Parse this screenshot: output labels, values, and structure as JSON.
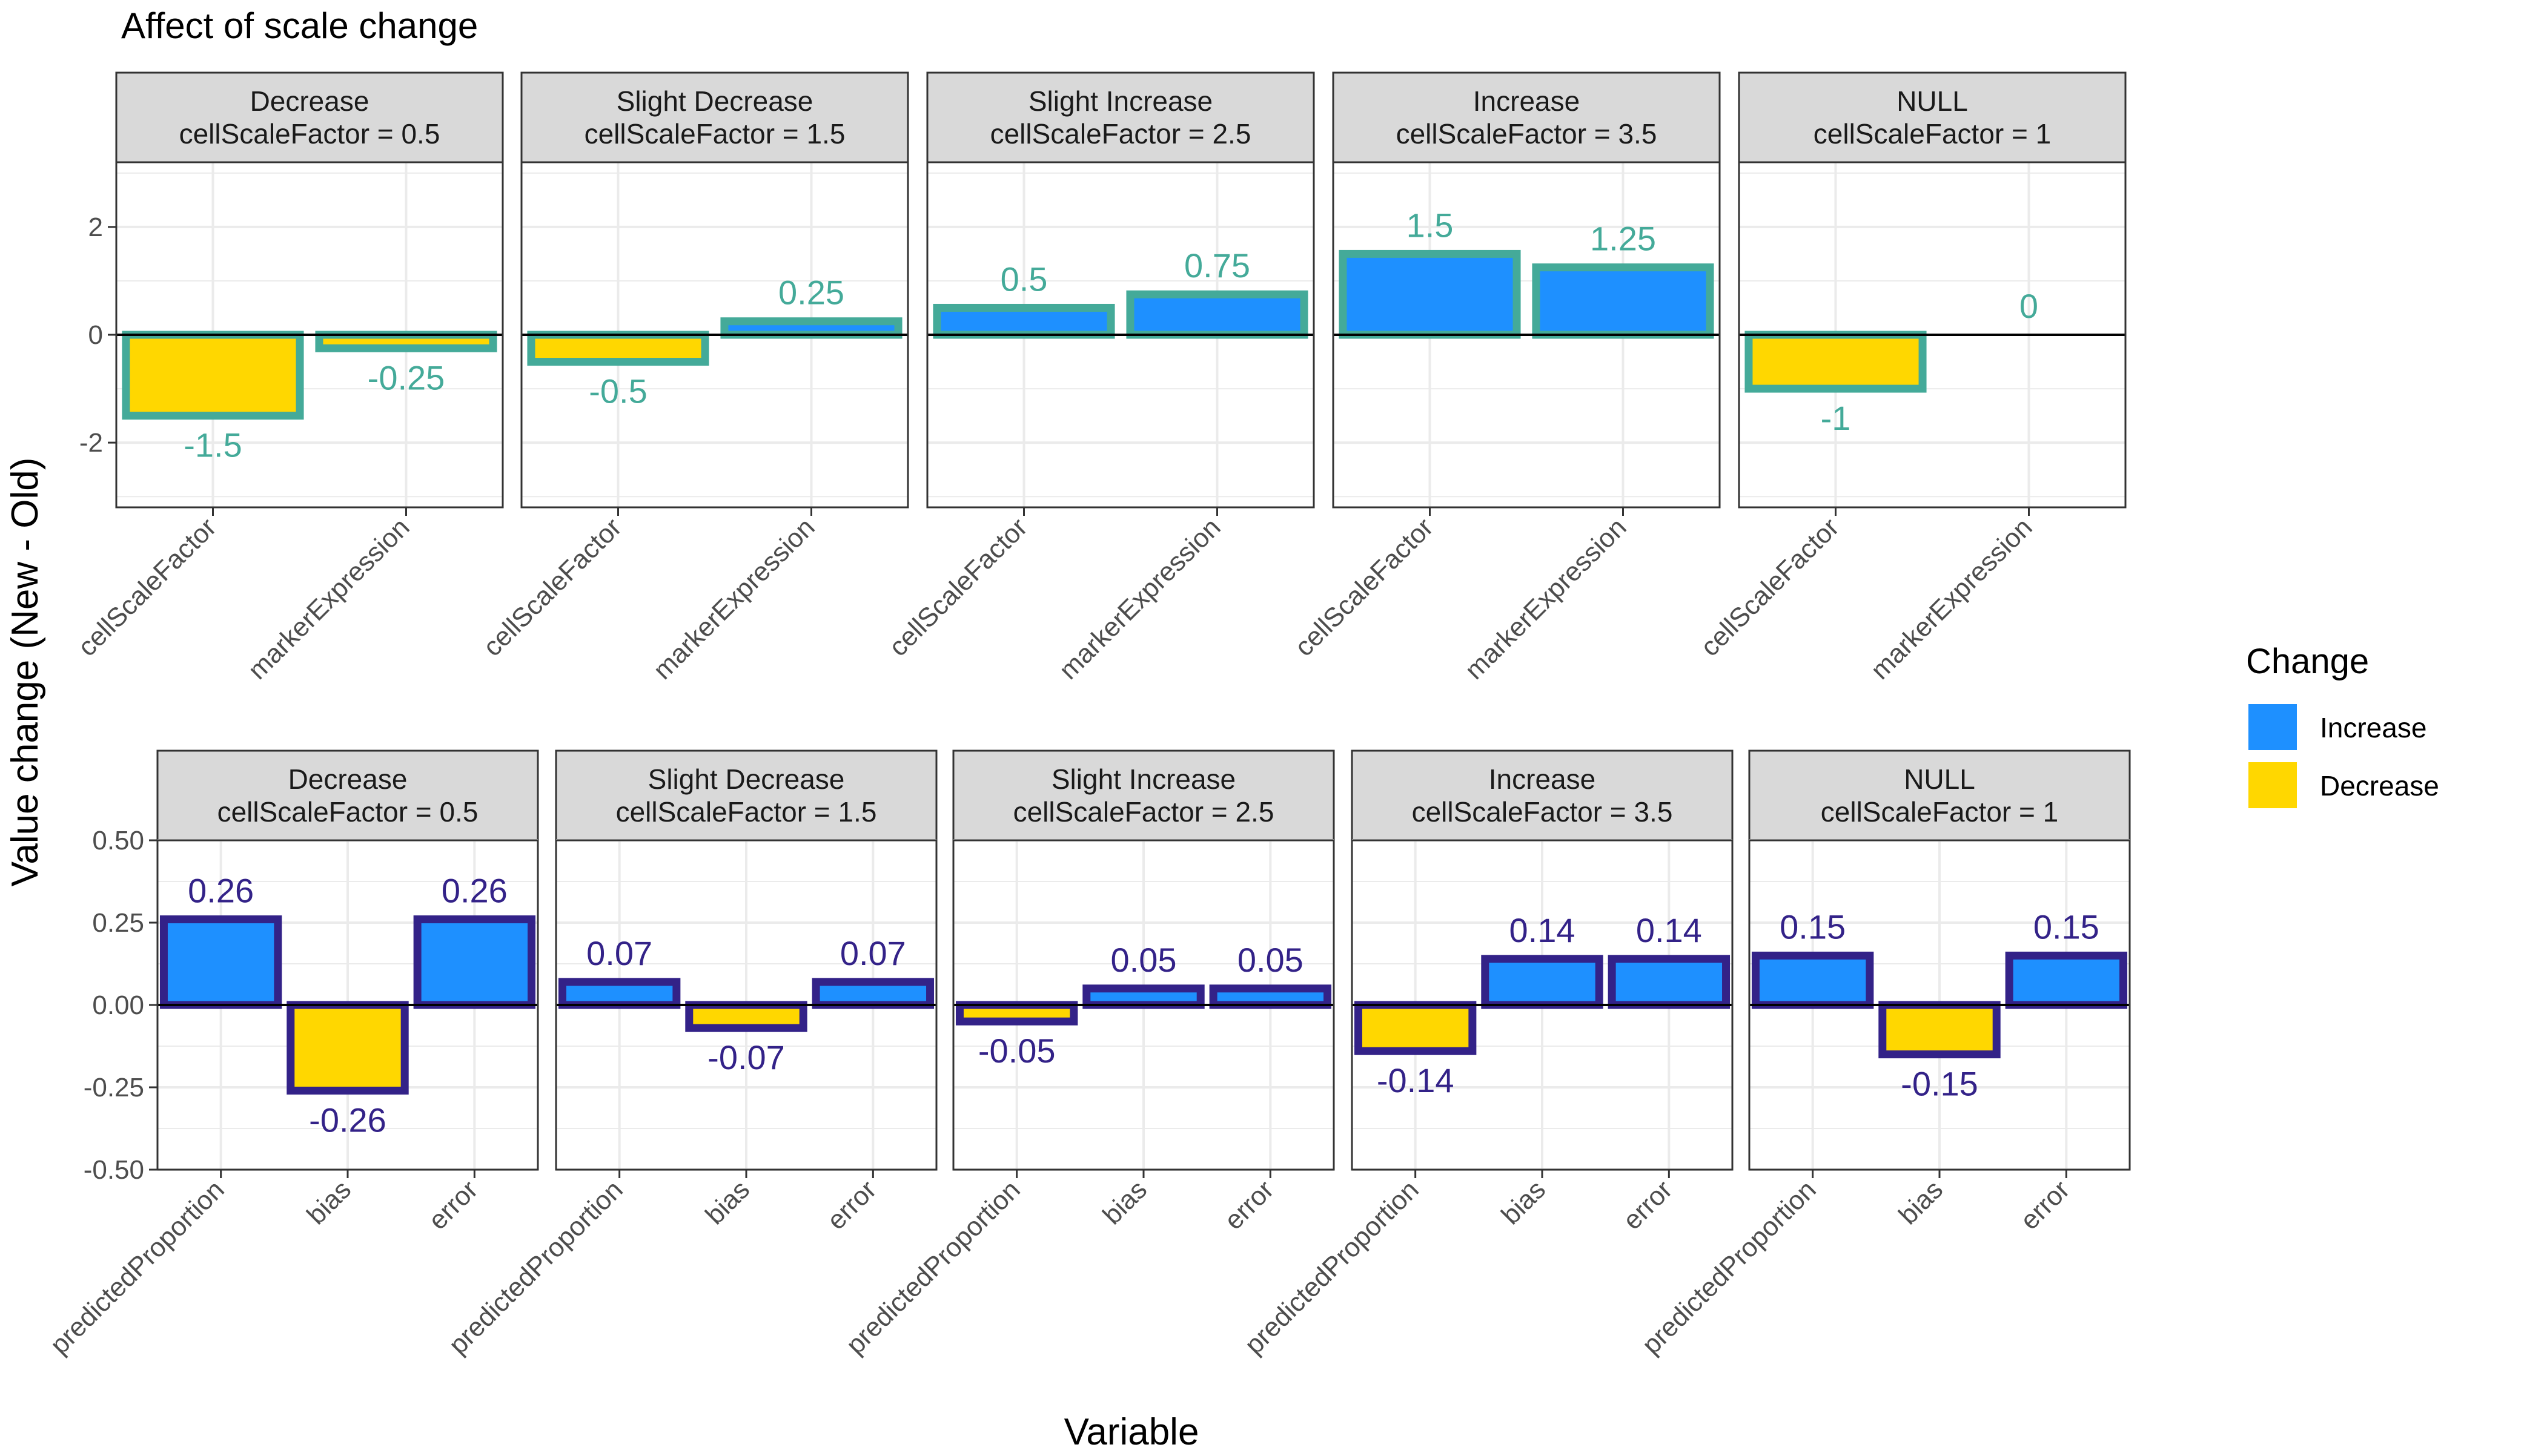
{
  "title": "Affect of scale change",
  "ylabel": "Value change (New - Old)",
  "xlabel": "Variable",
  "legend": {
    "title": "Change",
    "items": [
      {
        "label": "Increase",
        "color": "#1E90FF"
      },
      {
        "label": "Decrease",
        "color": "#FFD700"
      }
    ],
    "placement": "right"
  },
  "colors": {
    "increase": "#1E90FF",
    "decrease": "#FFD700",
    "top_outline": "#44AA99",
    "bottom_outline": "#332288",
    "strip_fill": "#D9D9D9",
    "grid": "#EBEBEB"
  },
  "chart_data": [
    {
      "type": "bar",
      "row": "top",
      "categories": [
        "cellScaleFactor",
        "markerExpression"
      ],
      "ylim": [
        -3.2,
        3.2
      ],
      "yticks": [
        -2,
        0,
        2
      ],
      "ytick_labels": [
        "-2",
        "0",
        "2"
      ],
      "grid": true,
      "facets": [
        {
          "strip": [
            "Decrease",
            "cellScaleFactor = 0.5"
          ],
          "values": [
            -1.5,
            -0.25
          ],
          "labels": [
            "-1.5",
            "-0.25"
          ]
        },
        {
          "strip": [
            "Slight Decrease",
            "cellScaleFactor = 1.5"
          ],
          "values": [
            -0.5,
            0.25
          ],
          "labels": [
            "-0.5",
            "0.25"
          ]
        },
        {
          "strip": [
            "Slight Increase",
            "cellScaleFactor = 2.5"
          ],
          "values": [
            0.5,
            0.75
          ],
          "labels": [
            "0.5",
            "0.75"
          ]
        },
        {
          "strip": [
            "Increase",
            "cellScaleFactor = 3.5"
          ],
          "values": [
            1.5,
            1.25
          ],
          "labels": [
            "1.5",
            "1.25"
          ]
        },
        {
          "strip": [
            "NULL",
            "cellScaleFactor = 1"
          ],
          "values": [
            -1,
            0
          ],
          "labels": [
            "-1",
            "0"
          ]
        }
      ]
    },
    {
      "type": "bar",
      "row": "bottom",
      "categories": [
        "predictedProportion",
        "bias",
        "error"
      ],
      "ylim": [
        -0.5,
        0.5
      ],
      "yticks": [
        -0.5,
        -0.25,
        0,
        0.25,
        0.5
      ],
      "ytick_labels": [
        "-0.50",
        "-0.25",
        "0.00",
        "0.25",
        "0.50"
      ],
      "grid": true,
      "facets": [
        {
          "strip": [
            "Decrease",
            "cellScaleFactor = 0.5"
          ],
          "values": [
            0.26,
            -0.26,
            0.26
          ],
          "labels": [
            "0.26",
            "-0.26",
            "0.26"
          ]
        },
        {
          "strip": [
            "Slight Decrease",
            "cellScaleFactor = 1.5"
          ],
          "values": [
            0.07,
            -0.07,
            0.07
          ],
          "labels": [
            "0.07",
            "-0.07",
            "0.07"
          ]
        },
        {
          "strip": [
            "Slight Increase",
            "cellScaleFactor = 2.5"
          ],
          "values": [
            -0.05,
            0.05,
            0.05
          ],
          "labels": [
            "-0.05",
            "0.05",
            "0.05"
          ]
        },
        {
          "strip": [
            "Increase",
            "cellScaleFactor = 3.5"
          ],
          "values": [
            -0.14,
            0.14,
            0.14
          ],
          "labels": [
            "-0.14",
            "0.14",
            "0.14"
          ]
        },
        {
          "strip": [
            "NULL",
            "cellScaleFactor = 1"
          ],
          "values": [
            0.15,
            -0.15,
            0.15
          ],
          "labels": [
            "0.15",
            "-0.15",
            "0.15"
          ]
        }
      ]
    }
  ]
}
